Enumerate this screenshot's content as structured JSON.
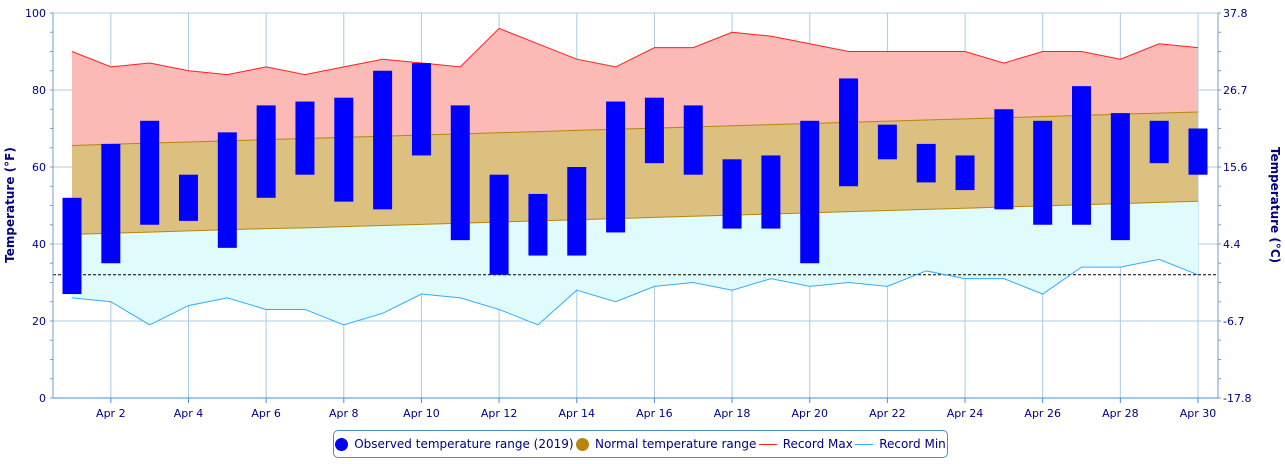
{
  "chart_data": {
    "type": "bar",
    "x": [
      "Apr 1",
      "Apr 2",
      "Apr 3",
      "Apr 4",
      "Apr 5",
      "Apr 6",
      "Apr 7",
      "Apr 8",
      "Apr 9",
      "Apr 10",
      "Apr 11",
      "Apr 12",
      "Apr 13",
      "Apr 14",
      "Apr 15",
      "Apr 16",
      "Apr 17",
      "Apr 18",
      "Apr 19",
      "Apr 20",
      "Apr 21",
      "Apr 22",
      "Apr 23",
      "Apr 24",
      "Apr 25",
      "Apr 26",
      "Apr 27",
      "Apr 28",
      "Apr 29",
      "Apr 30"
    ],
    "xtick_labels": [
      "Apr 2",
      "Apr 4",
      "Apr 6",
      "Apr 8",
      "Apr 10",
      "Apr 12",
      "Apr 14",
      "Apr 16",
      "Apr 18",
      "Apr 20",
      "Apr 22",
      "Apr 24",
      "Apr 26",
      "Apr 28",
      "Apr 30"
    ],
    "left_axis": {
      "label": "Temperature (°F)",
      "range": [
        0,
        100
      ],
      "ticks": [
        "0",
        "20",
        "40",
        "60",
        "80",
        "100"
      ]
    },
    "right_axis": {
      "label": "Temperature (°C)",
      "ticks": [
        "-17.8",
        "-6.7",
        "4.4",
        "15.6",
        "26.7",
        "37.8"
      ]
    },
    "freezing_line_f": 32,
    "series": [
      {
        "name": "Observed temperature range (2019)",
        "color": "#0000ff",
        "low": [
          27,
          35,
          45,
          46,
          39,
          52,
          58,
          51,
          49,
          63,
          41,
          32,
          37,
          37,
          43,
          61,
          58,
          44,
          44,
          35,
          55,
          62,
          56,
          54,
          49,
          45,
          45,
          41,
          61,
          58
        ],
        "high": [
          52,
          66,
          72,
          58,
          69,
          76,
          77,
          78,
          85,
          87,
          76,
          58,
          53,
          60,
          77,
          78,
          76,
          62,
          63,
          72,
          83,
          71,
          66,
          63,
          75,
          72,
          81,
          74,
          72,
          70
        ]
      },
      {
        "name": "Normal temperature range",
        "color": "#b8860b",
        "low": [
          42.5,
          42.8,
          43.1,
          43.4,
          43.7,
          44.0,
          44.2,
          44.5,
          44.8,
          45.1,
          45.4,
          45.7,
          46.0,
          46.3,
          46.6,
          46.9,
          47.2,
          47.5,
          47.8,
          48.1,
          48.4,
          48.7,
          49.0,
          49.3,
          49.6,
          49.9,
          50.2,
          50.5,
          50.8,
          51.1
        ],
        "high": [
          65.6,
          65.9,
          66.2,
          66.5,
          66.8,
          67.1,
          67.4,
          67.7,
          68.0,
          68.3,
          68.6,
          68.9,
          69.2,
          69.5,
          69.8,
          70.1,
          70.4,
          70.7,
          71.0,
          71.3,
          71.6,
          71.9,
          72.2,
          72.5,
          72.8,
          73.1,
          73.4,
          73.7,
          74.0,
          74.3
        ]
      },
      {
        "name": "Record Max",
        "color": "#ff2020",
        "values": [
          90,
          86,
          87,
          85,
          84,
          86,
          84,
          86,
          88,
          87,
          86,
          96,
          92,
          88,
          86,
          91,
          91,
          95,
          94,
          92,
          90,
          90,
          90,
          90,
          87,
          90,
          90,
          88,
          92,
          91
        ]
      },
      {
        "name": "Record Min",
        "color": "#33aaff",
        "values": [
          26,
          25,
          19,
          24,
          26,
          23,
          23,
          19,
          22,
          27,
          26,
          23,
          19,
          28,
          25,
          29,
          30,
          28,
          31,
          29,
          30,
          29,
          33,
          31,
          31,
          27,
          34,
          34,
          36,
          32
        ]
      }
    ],
    "grid": true,
    "legend_position": "bottom"
  }
}
